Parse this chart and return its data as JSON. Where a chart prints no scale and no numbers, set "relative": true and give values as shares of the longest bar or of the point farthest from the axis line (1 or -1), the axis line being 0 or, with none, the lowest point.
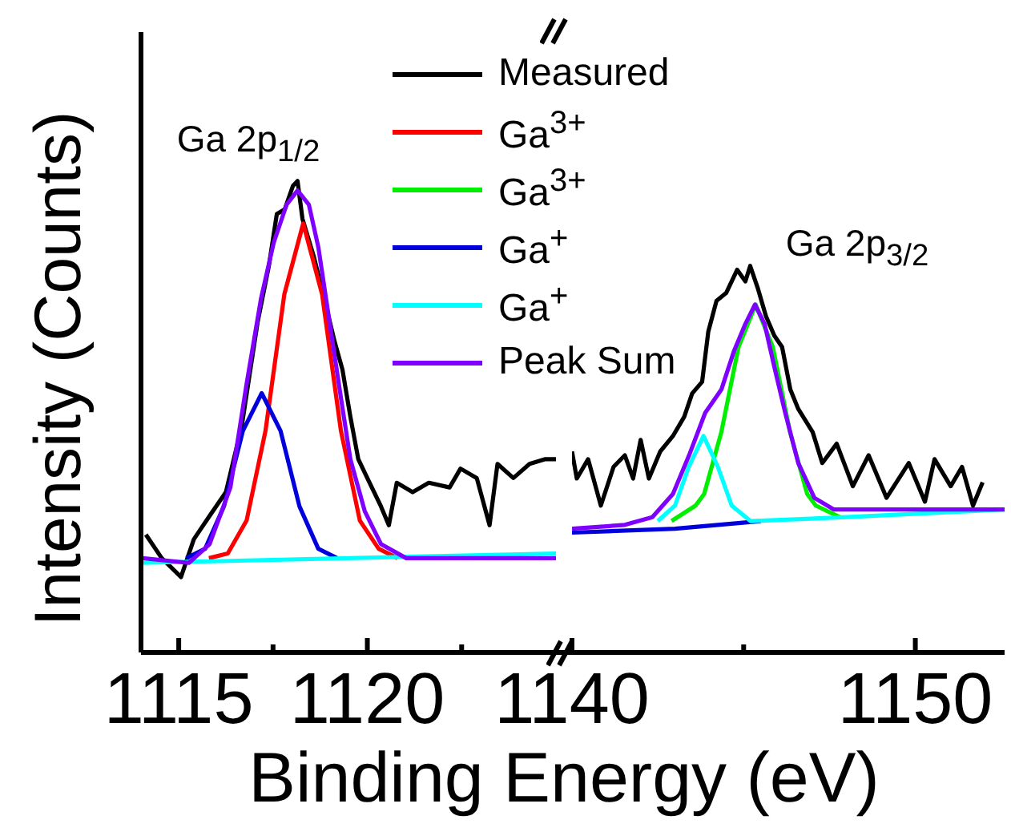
{
  "chart_data": [
    {
      "type": "line",
      "xlabel": "Binding Energy (eV)",
      "ylabel": "Intensity (Counts)",
      "relative": true,
      "tick_labels": "x",
      "legend": "top right",
      "xlim": [
        1114,
        1125
      ],
      "xticks": [
        1115,
        {
          "value": 1117.5,
          "label": null
        },
        1120,
        {
          "value": 1122.5,
          "label": null
        }
      ],
      "annotations": [
        "Ga 2p$_{1/2}$"
      ],
      "series": [
        {
          "name": "Measured",
          "color": "#000000",
          "x": [
            1114.13,
            1114.55,
            1115.06,
            1115.4,
            1115.82,
            1116.25,
            1116.67,
            1117.09,
            1117.39,
            1117.6,
            1117.81,
            1118.03,
            1118.15,
            1118.28,
            1118.58,
            1118.92,
            1119.13,
            1119.34,
            1119.55,
            1119.76,
            1120.06,
            1120.36,
            1120.57,
            1120.78,
            1121.2,
            1121.63,
            1122.18,
            1122.47,
            1122.9,
            1123.24,
            1123.45,
            1123.87,
            1124.3,
            1124.72,
            1125.0
          ],
          "values": [
            0.25,
            0.2,
            0.16,
            0.24,
            0.29,
            0.34,
            0.48,
            0.7,
            0.82,
            0.93,
            0.94,
            0.99,
            1.0,
            0.92,
            0.84,
            0.73,
            0.66,
            0.6,
            0.5,
            0.41,
            0.36,
            0.31,
            0.27,
            0.36,
            0.34,
            0.36,
            0.35,
            0.39,
            0.37,
            0.27,
            0.4,
            0.37,
            0.4,
            0.41,
            0.41
          ]
        },
        {
          "name": "Ga$^{3+}$",
          "color": "#ff0000",
          "x": [
            1115.8,
            1116.3,
            1116.8,
            1117.3,
            1117.8,
            1118.3,
            1118.8,
            1119.3,
            1119.8,
            1120.3,
            1120.8
          ],
          "values": [
            0.2,
            0.21,
            0.28,
            0.47,
            0.76,
            0.91,
            0.76,
            0.47,
            0.28,
            0.22,
            0.2
          ]
        },
        {
          "name": "Ga$^{3+}$",
          "color": "#00ee00"
        },
        {
          "name": "Ga$^{+}$",
          "color": "#0000dd",
          "x": [
            1115.2,
            1115.7,
            1116.2,
            1116.7,
            1117.2,
            1117.7,
            1118.2,
            1118.7,
            1119.2
          ],
          "values": [
            0.2,
            0.22,
            0.31,
            0.47,
            0.55,
            0.47,
            0.31,
            0.22,
            0.2
          ]
        },
        {
          "name": "Ga$^{+}$",
          "color": "#00ffff",
          "x": [
            1114.0,
            1125.0
          ],
          "values": [
            0.19,
            0.21
          ]
        },
        {
          "name": "Peak Sum",
          "color": "#8000ff",
          "x": [
            1114.04,
            1115.27,
            1115.82,
            1116.37,
            1116.8,
            1117.18,
            1117.52,
            1117.86,
            1118.15,
            1118.45,
            1118.7,
            1119.0,
            1119.3,
            1119.55,
            1119.93,
            1120.36,
            1121.03,
            1125.0
          ],
          "values": [
            0.2,
            0.19,
            0.23,
            0.35,
            0.57,
            0.75,
            0.87,
            0.95,
            0.98,
            0.95,
            0.86,
            0.7,
            0.54,
            0.41,
            0.3,
            0.23,
            0.2,
            0.2
          ]
        }
      ]
    },
    {
      "type": "line",
      "relative": true,
      "tick_labels": "x",
      "xlim": [
        1140,
        1152.6
      ],
      "xticks": [
        1140,
        {
          "value": 1145,
          "label": null
        },
        1150
      ],
      "annotations": [
        "Ga 2p$_{3/2}$"
      ],
      "series": [
        {
          "color": "#000000",
          "x": [
            1140.0,
            1140.14,
            1140.47,
            1140.84,
            1141.21,
            1141.54,
            1141.78,
            1142.0,
            1142.24,
            1142.57,
            1142.94,
            1143.27,
            1143.5,
            1143.79,
            1143.97,
            1144.21,
            1144.49,
            1144.81,
            1145.05,
            1145.19,
            1145.42,
            1145.65,
            1145.89,
            1146.12,
            1146.36,
            1146.59,
            1147.01,
            1147.29,
            1147.71,
            1148.18,
            1148.64,
            1149.16,
            1149.81,
            1150.28,
            1150.56,
            1151.03,
            1151.36,
            1151.68,
            1151.96
          ],
          "values": [
            0.52,
            0.45,
            0.5,
            0.38,
            0.48,
            0.51,
            0.45,
            0.55,
            0.45,
            0.52,
            0.56,
            0.61,
            0.67,
            0.7,
            0.83,
            0.91,
            0.93,
            0.99,
            0.96,
            1.0,
            0.94,
            0.87,
            0.82,
            0.79,
            0.68,
            0.63,
            0.57,
            0.49,
            0.54,
            0.43,
            0.51,
            0.4,
            0.49,
            0.39,
            0.5,
            0.43,
            0.48,
            0.38,
            0.44
          ]
        },
        {
          "color": "#00ee00",
          "x": [
            1142.9,
            1143.6,
            1143.85,
            1144.35,
            1144.85,
            1145.35,
            1145.85,
            1146.35,
            1146.85,
            1147.1,
            1147.8
          ],
          "values": [
            0.34,
            0.38,
            0.41,
            0.57,
            0.79,
            0.9,
            0.79,
            0.57,
            0.41,
            0.38,
            0.35
          ]
        },
        {
          "color": "#0000dd",
          "x": [
            1140.0,
            1143.0,
            1145.5
          ],
          "values": [
            0.31,
            0.32,
            0.34
          ]
        },
        {
          "color": "#00ffff",
          "x": [
            1142.5,
            1143.0,
            1143.4,
            1143.83,
            1144.25,
            1144.65,
            1145.2,
            1148.0,
            1152.6
          ],
          "values": [
            0.34,
            0.38,
            0.48,
            0.56,
            0.48,
            0.38,
            0.34,
            0.35,
            0.37
          ]
        },
        {
          "color": "#8000ff",
          "x": [
            1140.0,
            1141.54,
            1142.34,
            1142.94,
            1143.41,
            1143.88,
            1144.35,
            1144.72,
            1145.05,
            1145.33,
            1145.61,
            1145.89,
            1146.21,
            1146.59,
            1147.06,
            1147.62,
            1151.96,
            1152.6
          ],
          "values": [
            0.32,
            0.33,
            0.35,
            0.41,
            0.51,
            0.62,
            0.68,
            0.78,
            0.85,
            0.9,
            0.85,
            0.74,
            0.62,
            0.49,
            0.4,
            0.37,
            0.37,
            0.37
          ]
        }
      ]
    }
  ]
}
